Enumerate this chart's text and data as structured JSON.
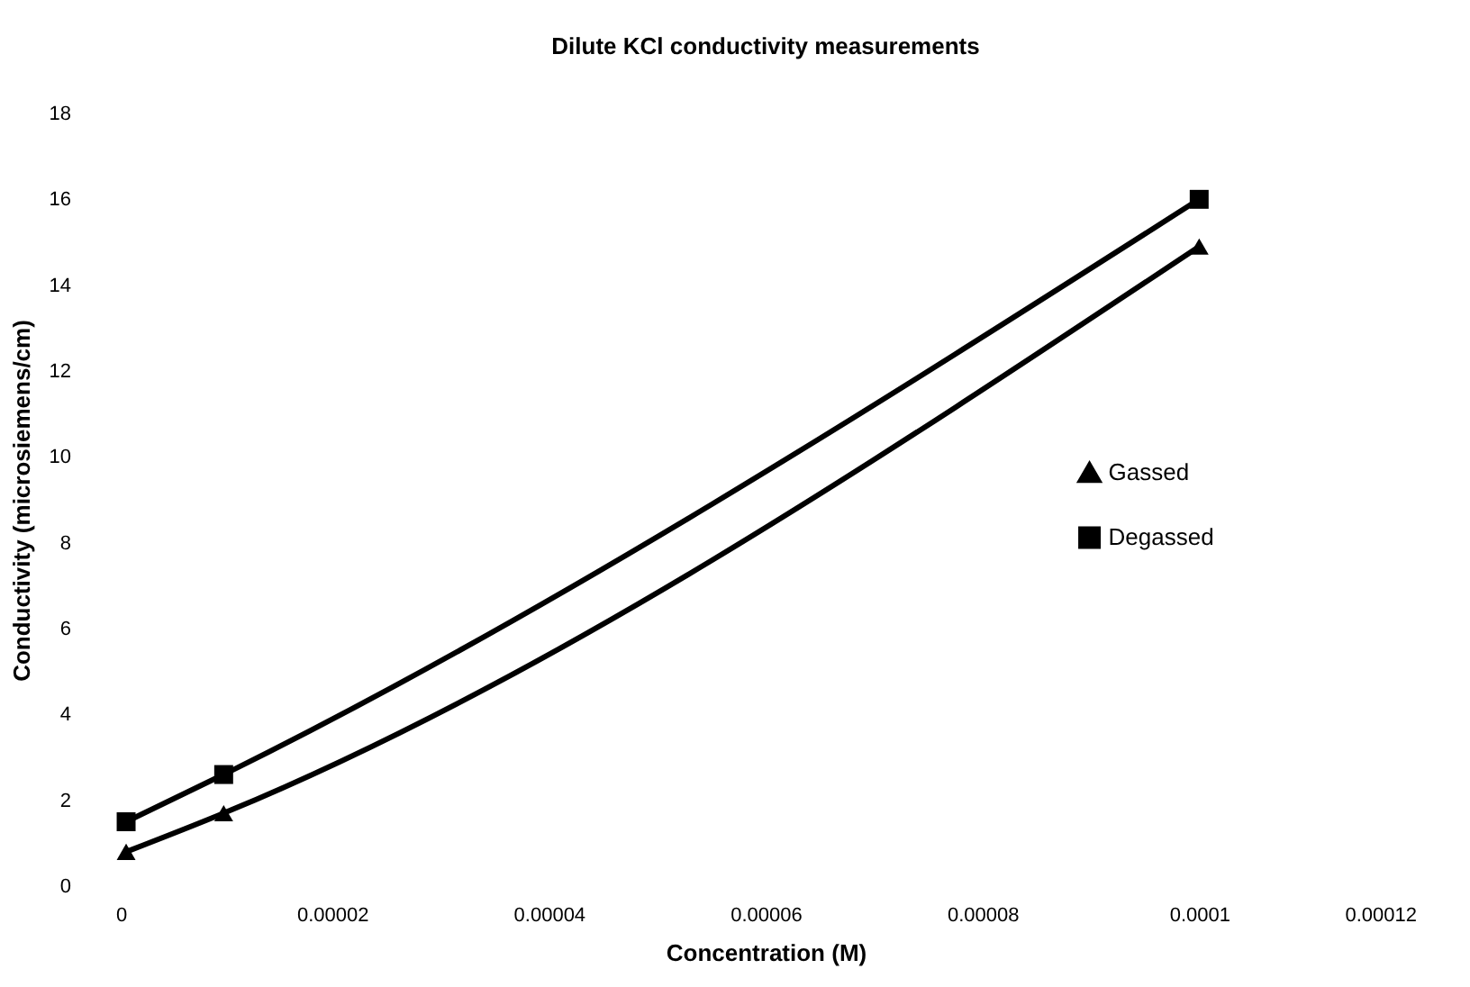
{
  "chart_data": {
    "type": "line",
    "title": "Dilute KCl conductivity measurements",
    "xlabel": "Concentration (M)",
    "ylabel": "Conductivity (microsiemens/cm)",
    "x": [
      1e-06,
      1e-05,
      0.0001
    ],
    "series": [
      {
        "name": "Gassed",
        "color": "#000000",
        "marker": "triangle",
        "values": [
          0.8,
          1.7,
          14.9
        ]
      },
      {
        "name": "Degassed",
        "color": "#000000",
        "marker": "square",
        "values": [
          1.5,
          2.6,
          16.0
        ]
      }
    ],
    "xlim": [
      0,
      0.00012
    ],
    "xticks": [
      0,
      {
        "value": 2e-05,
        "label": "0.00002"
      },
      {
        "value": 4e-05,
        "label": "0.00004"
      },
      {
        "value": 6e-05,
        "label": "0.00006"
      },
      {
        "value": 8e-05,
        "label": "0.00008"
      },
      0.0001,
      0.00012
    ],
    "ylim": [
      0,
      18
    ],
    "yticks": [
      0,
      2,
      4,
      6,
      8,
      10,
      12,
      14,
      16,
      18
    ],
    "grid": false,
    "legend": "right",
    "line_style": "solid"
  }
}
